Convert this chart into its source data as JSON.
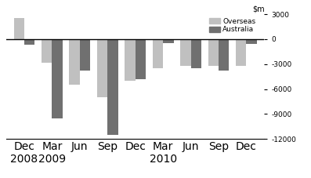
{
  "categories": [
    "Dec\n2008",
    "Mar\n2009",
    "Jun",
    "Sep",
    "Dec",
    "Mar\n2010",
    "Jun",
    "Sep",
    "Dec"
  ],
  "overseas": [
    2500,
    -2800,
    -5500,
    -7000,
    -5000,
    -3500,
    -3200,
    -3200,
    -3200
  ],
  "australia": [
    -700,
    -9500,
    -3800,
    -11500,
    -4800,
    -500,
    -3500,
    -3800,
    -600
  ],
  "color_overseas": "#c0c0c0",
  "color_australia": "#707070",
  "ylim": [
    -12000,
    3000
  ],
  "yticks": [
    3000,
    0,
    -3000,
    -6000,
    -9000,
    -12000
  ],
  "ytick_labels": [
    "3000",
    "0",
    "-3000",
    "-6000",
    "-9000",
    "-12000"
  ],
  "legend_labels": [
    "Overseas",
    "Australia"
  ],
  "bar_width": 0.38,
  "zero_line_color": "#000000"
}
